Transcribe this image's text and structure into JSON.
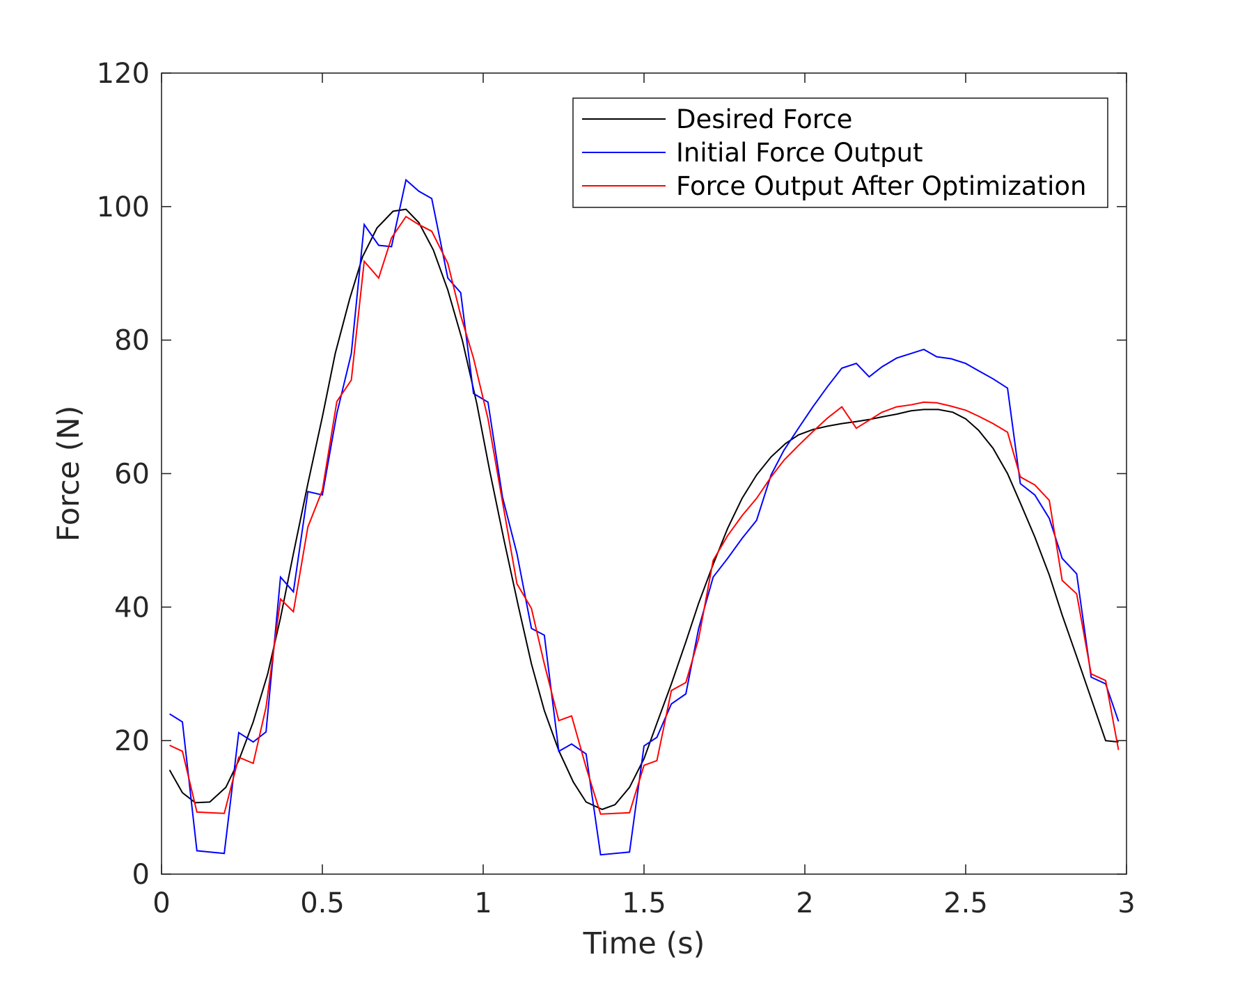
{
  "chart_data": {
    "type": "line",
    "title": "",
    "xlabel": "Time (s)",
    "ylabel": "Force (N)",
    "xlim": [
      0,
      3
    ],
    "ylim": [
      0,
      120
    ],
    "x_ticks": [
      0,
      0.5,
      1,
      1.5,
      2,
      2.5,
      3
    ],
    "y_ticks": [
      0,
      20,
      40,
      60,
      80,
      100,
      120
    ],
    "x_tick_labels": [
      "0",
      "0.5",
      "1",
      "1.5",
      "2",
      "2.5",
      "3"
    ],
    "y_tick_labels": [
      "0",
      "20",
      "40",
      "60",
      "80",
      "100",
      "120"
    ],
    "grid": false,
    "legend_position": "top-right",
    "series": [
      {
        "name": "Desired Force",
        "color": "#000000",
        "x": [
          0.025,
          0.065,
          0.105,
          0.15,
          0.2,
          0.24,
          0.285,
          0.33,
          0.37,
          0.41,
          0.455,
          0.5,
          0.54,
          0.585,
          0.625,
          0.67,
          0.72,
          0.76,
          0.8,
          0.845,
          0.89,
          0.935,
          0.98,
          1.02,
          1.065,
          1.11,
          1.15,
          1.19,
          1.235,
          1.28,
          1.32,
          1.37,
          1.41,
          1.455,
          1.5,
          1.54,
          1.585,
          1.63,
          1.67,
          1.715,
          1.76,
          1.805,
          1.85,
          1.895,
          1.94,
          1.98,
          2.025,
          2.07,
          2.115,
          2.16,
          2.2,
          2.24,
          2.285,
          2.33,
          2.37,
          2.415,
          2.46,
          2.5,
          2.54,
          2.585,
          2.63,
          2.67,
          2.715,
          2.76,
          2.8,
          2.845,
          2.89,
          2.935,
          2.975
        ],
        "y": [
          15.6,
          12.2,
          10.7,
          10.8,
          13.0,
          17.0,
          22.8,
          30.0,
          38.4,
          48.0,
          58.5,
          68.5,
          78.0,
          86.2,
          92.5,
          96.8,
          99.3,
          99.6,
          97.6,
          93.5,
          87.5,
          80.0,
          70.5,
          60.5,
          50.0,
          40.0,
          31.5,
          24.5,
          18.5,
          13.8,
          10.8,
          9.7,
          10.4,
          13.0,
          17.3,
          22.6,
          28.5,
          34.8,
          40.6,
          46.4,
          51.8,
          56.3,
          59.8,
          62.5,
          64.5,
          65.8,
          66.6,
          67.1,
          67.5,
          67.8,
          68.1,
          68.5,
          68.9,
          69.4,
          69.6,
          69.6,
          69.2,
          68.2,
          66.5,
          63.8,
          60.0,
          55.6,
          50.5,
          44.8,
          38.8,
          32.6,
          26.3,
          20.0,
          19.8
        ]
      },
      {
        "name": "Initial Force Output",
        "color": "#0000ff",
        "x": [
          0.025,
          0.065,
          0.11,
          0.15,
          0.195,
          0.24,
          0.285,
          0.325,
          0.37,
          0.41,
          0.455,
          0.5,
          0.545,
          0.59,
          0.63,
          0.675,
          0.715,
          0.76,
          0.8,
          0.84,
          0.89,
          0.93,
          0.97,
          1.015,
          1.06,
          1.105,
          1.15,
          1.19,
          1.235,
          1.275,
          1.32,
          1.365,
          1.41,
          1.455,
          1.5,
          1.54,
          1.585,
          1.63,
          1.67,
          1.715,
          1.76,
          1.805,
          1.85,
          1.895,
          1.935,
          1.98,
          2.025,
          2.07,
          2.115,
          2.16,
          2.2,
          2.24,
          2.285,
          2.33,
          2.37,
          2.41,
          2.455,
          2.5,
          2.54,
          2.585,
          2.63,
          2.67,
          2.715,
          2.76,
          2.8,
          2.845,
          2.89,
          2.935,
          2.975
        ],
        "y": [
          24.0,
          22.8,
          3.5,
          3.3,
          3.1,
          21.2,
          19.8,
          21.3,
          44.5,
          42.3,
          57.3,
          56.8,
          69.0,
          78.0,
          97.3,
          94.2,
          94.0,
          104.0,
          102.3,
          101.2,
          89.3,
          87.1,
          72.0,
          70.7,
          56.5,
          48.0,
          36.8,
          35.8,
          18.4,
          19.5,
          18.0,
          2.9,
          3.1,
          3.3,
          19.2,
          20.5,
          25.5,
          27.0,
          36.8,
          44.5,
          47.3,
          50.3,
          53.0,
          59.8,
          63.5,
          66.8,
          70.0,
          73.0,
          75.8,
          76.5,
          74.5,
          76.0,
          77.3,
          78.0,
          78.6,
          77.5,
          77.2,
          76.5,
          75.4,
          74.2,
          72.8,
          58.5,
          56.8,
          53.3,
          47.3,
          45.0,
          29.5,
          28.5,
          22.9
        ]
      },
      {
        "name": "Force Output After Optimization",
        "color": "#ff0000",
        "x": [
          0.025,
          0.065,
          0.11,
          0.15,
          0.195,
          0.24,
          0.285,
          0.325,
          0.37,
          0.41,
          0.455,
          0.5,
          0.545,
          0.59,
          0.63,
          0.675,
          0.715,
          0.76,
          0.8,
          0.84,
          0.89,
          0.93,
          0.97,
          1.015,
          1.06,
          1.105,
          1.15,
          1.19,
          1.235,
          1.275,
          1.32,
          1.365,
          1.41,
          1.455,
          1.5,
          1.54,
          1.585,
          1.63,
          1.67,
          1.715,
          1.76,
          1.805,
          1.85,
          1.895,
          1.935,
          1.98,
          2.025,
          2.07,
          2.115,
          2.16,
          2.2,
          2.24,
          2.285,
          2.33,
          2.37,
          2.41,
          2.455,
          2.5,
          2.54,
          2.585,
          2.63,
          2.67,
          2.715,
          2.76,
          2.8,
          2.845,
          2.89,
          2.935,
          2.975
        ],
        "y": [
          19.3,
          18.4,
          9.3,
          9.2,
          9.1,
          17.5,
          16.6,
          25.0,
          41.2,
          39.3,
          52.0,
          57.5,
          70.8,
          74.0,
          91.8,
          89.3,
          95.3,
          98.5,
          97.3,
          96.3,
          91.5,
          83.7,
          77.3,
          68.2,
          55.8,
          43.5,
          39.8,
          31.5,
          23.0,
          23.7,
          16.0,
          9.0,
          9.1,
          9.2,
          16.3,
          17.0,
          27.5,
          28.7,
          35.3,
          47.0,
          50.7,
          53.7,
          56.3,
          59.5,
          62.0,
          64.2,
          66.3,
          68.3,
          70.0,
          66.8,
          68.0,
          69.2,
          70.0,
          70.3,
          70.7,
          70.6,
          70.1,
          69.5,
          68.6,
          67.5,
          66.2,
          59.5,
          58.3,
          56.0,
          44.0,
          42.0,
          30.0,
          29.0,
          18.6
        ]
      }
    ]
  }
}
